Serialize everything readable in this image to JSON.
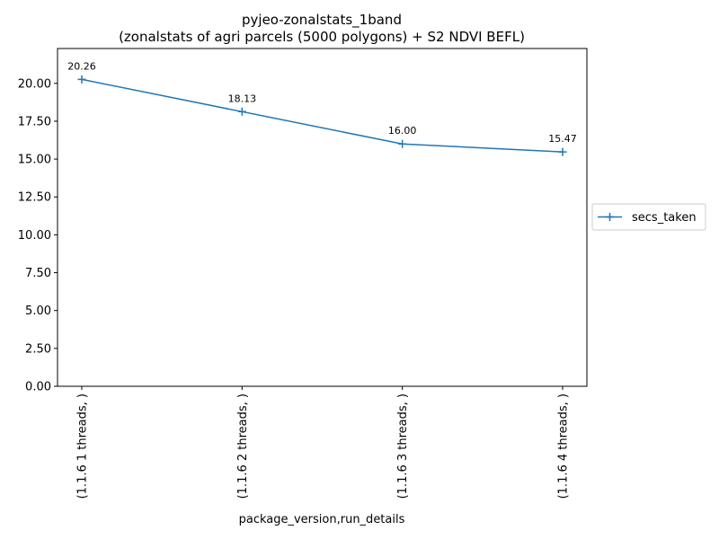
{
  "chart_data": {
    "type": "line",
    "title": "pyjeo-zonalstats_1band",
    "subtitle": "(zonalstats of agri parcels (5000 polygons) + S2 NDVI BEFL)",
    "xlabel": "package_version,run_details",
    "ylabel": "",
    "categories": [
      "(1.1.6 1 threads, )",
      "(1.1.6 2 threads, )",
      "(1.1.6 3 threads, )",
      "(1.1.6 4 threads, )"
    ],
    "series": [
      {
        "name": "secs_taken",
        "values": [
          20.26,
          18.13,
          16.0,
          15.47
        ],
        "color": "#1f77b4",
        "marker": "plus"
      }
    ],
    "data_labels": [
      "20.26",
      "18.13",
      "16.00",
      "15.47"
    ],
    "ylim": [
      0,
      22.3
    ],
    "yticks": [
      0,
      2.5,
      5,
      7.5,
      10,
      12.5,
      15,
      17.5,
      20
    ],
    "ytick_labels": [
      "0.00",
      "2.50",
      "5.00",
      "7.50",
      "10.00",
      "12.50",
      "15.00",
      "17.50",
      "20.00"
    ],
    "grid": false,
    "legend_position": "right"
  }
}
